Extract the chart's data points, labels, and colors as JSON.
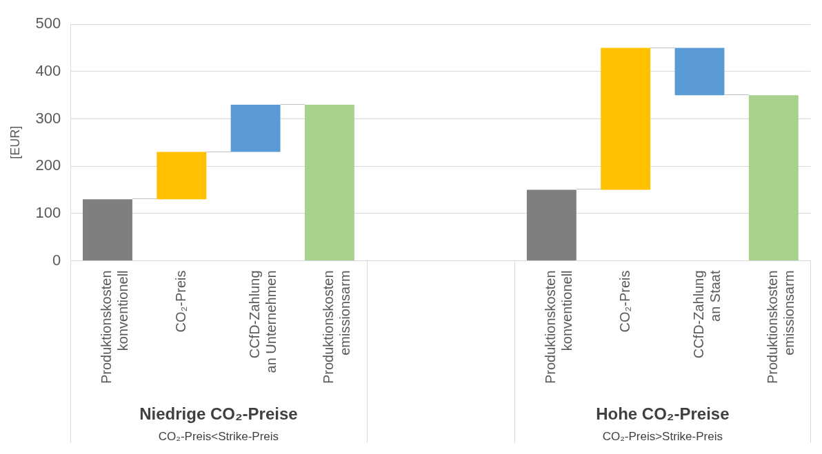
{
  "chart_data": {
    "type": "bar",
    "ylabel": "[EUR]",
    "categories": [
      "Produktionskosten\nkonventionell",
      "CO₂-Preis",
      "CCfD-Zahlung\nan Unternehmen",
      "Produktionskosten\nemissionsarm",
      null,
      null,
      "Produktionskosten\nkonventionell",
      "CO₂-Preis",
      "CCfD-Zahlung\nan Staat",
      "Produktionskosten\nemissionsarm"
    ],
    "values": [
      130,
      100,
      100,
      330,
      null,
      null,
      150,
      300,
      -100,
      350
    ],
    "base": [
      0,
      130,
      230,
      0,
      null,
      null,
      0,
      150,
      450,
      0
    ],
    "colors": [
      "#7f7f7f",
      "#ffc000",
      "#5b9bd5",
      "#a9d18e",
      "#ffffff",
      "#ffffff",
      "#7f7f7f",
      "#ffc000",
      "#5b9bd5",
      "#a9d18e"
    ],
    "ylim": [
      0,
      500
    ],
    "yticks": [
      0,
      100,
      200,
      300,
      400,
      500
    ],
    "grid": "y",
    "legend": false,
    "annotations": [
      "Niedrige CO₂-Preise",
      "CO₂-Preis<Strike-Preis",
      "Hohe CO₂-Preise",
      "CO₂-Preis>Strike-Preis"
    ]
  }
}
